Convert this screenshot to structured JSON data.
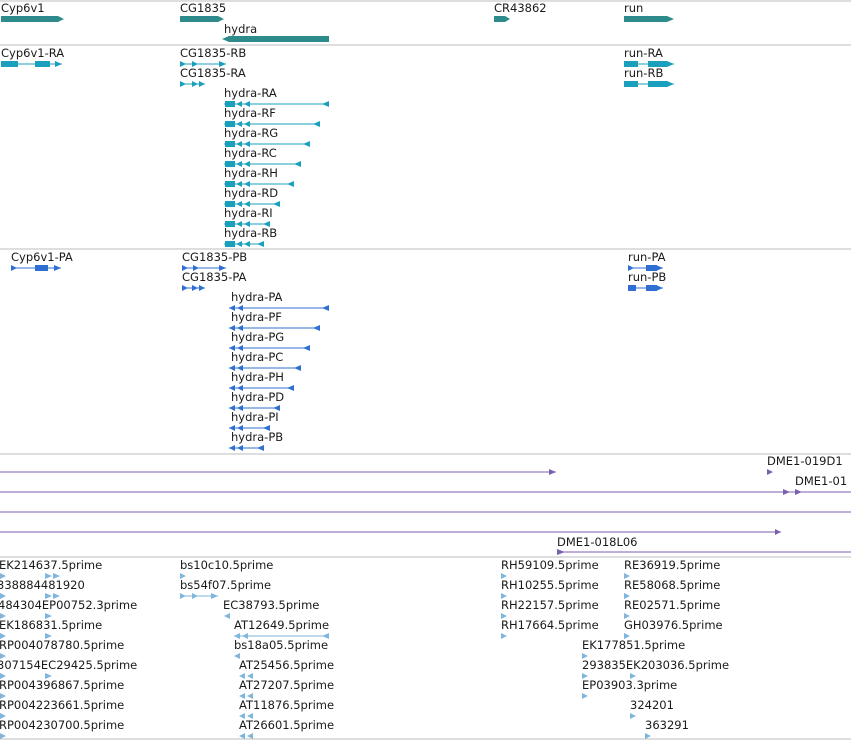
{
  "colors": {
    "gene": "#2e8b8b",
    "transcript": "#1aa0bd",
    "protein": "#2f6fd3",
    "clone": "#7b5fb0",
    "est": "#7fb6de",
    "divider": "#bcbcbc",
    "text": "#1a1a1a"
  },
  "tracks": {
    "genes": {
      "items": [
        {
          "id": "gene-cyp6v1",
          "label": "Cyp6v1"
        },
        {
          "id": "gene-cg1835",
          "label": "CG1835"
        },
        {
          "id": "gene-hydra",
          "label": "hydra"
        },
        {
          "id": "gene-cr43862",
          "label": "CR43862"
        },
        {
          "id": "gene-run",
          "label": "run"
        }
      ]
    },
    "transcripts": {
      "items": [
        {
          "id": "tx-cyp6v1-ra",
          "label": "Cyp6v1-RA"
        },
        {
          "id": "tx-cg1835-rb",
          "label": "CG1835-RB"
        },
        {
          "id": "tx-cg1835-ra",
          "label": "CG1835-RA"
        },
        {
          "id": "tx-hydra-ra",
          "label": "hydra-RA"
        },
        {
          "id": "tx-hydra-rf",
          "label": "hydra-RF"
        },
        {
          "id": "tx-hydra-rg",
          "label": "hydra-RG"
        },
        {
          "id": "tx-hydra-rc",
          "label": "hydra-RC"
        },
        {
          "id": "tx-hydra-rh",
          "label": "hydra-RH"
        },
        {
          "id": "tx-hydra-rd",
          "label": "hydra-RD"
        },
        {
          "id": "tx-hydra-ri",
          "label": "hydra-RI"
        },
        {
          "id": "tx-hydra-rb",
          "label": "hydra-RB"
        },
        {
          "id": "tx-run-ra",
          "label": "run-RA"
        },
        {
          "id": "tx-run-rb",
          "label": "run-RB"
        }
      ]
    },
    "proteins": {
      "items": [
        {
          "id": "pr-cyp6v1-pa",
          "label": "Cyp6v1-PA"
        },
        {
          "id": "pr-cg1835-pb",
          "label": "CG1835-PB"
        },
        {
          "id": "pr-cg1835-pa",
          "label": "CG1835-PA"
        },
        {
          "id": "pr-hydra-pa",
          "label": "hydra-PA"
        },
        {
          "id": "pr-hydra-pf",
          "label": "hydra-PF"
        },
        {
          "id": "pr-hydra-pg",
          "label": "hydra-PG"
        },
        {
          "id": "pr-hydra-pc",
          "label": "hydra-PC"
        },
        {
          "id": "pr-hydra-ph",
          "label": "hydra-PH"
        },
        {
          "id": "pr-hydra-pd",
          "label": "hydra-PD"
        },
        {
          "id": "pr-hydra-pi",
          "label": "hydra-PI"
        },
        {
          "id": "pr-hydra-pb",
          "label": "hydra-PB"
        },
        {
          "id": "pr-run-pa",
          "label": "run-PA"
        },
        {
          "id": "pr-run-pb",
          "label": "run-PB"
        }
      ]
    },
    "clones": {
      "items": [
        {
          "id": "cl-1",
          "label": ""
        },
        {
          "id": "cl-019d1",
          "label": "DME1-019D1"
        },
        {
          "id": "cl-2",
          "label": ""
        },
        {
          "id": "cl-01x",
          "label": "DME1-01"
        },
        {
          "id": "cl-3",
          "label": ""
        },
        {
          "id": "cl-4",
          "label": ""
        },
        {
          "id": "cl-018l06",
          "label": "DME1-018L06"
        }
      ]
    },
    "ests": {
      "items": [
        {
          "id": "est-ek214637",
          "label": "EK214637.5prime"
        },
        {
          "id": "est-bs10c10",
          "label": "bs10c10.5prime"
        },
        {
          "id": "est-rh59109",
          "label": "RH59109.5prime"
        },
        {
          "id": "est-re36919",
          "label": "RE36919.5prime"
        },
        {
          "id": "est-338884481920",
          "label": "338884481920"
        },
        {
          "id": "est-bs54f07",
          "label": "bs54f07.5prime"
        },
        {
          "id": "est-rh10255",
          "label": "RH10255.5prime"
        },
        {
          "id": "est-re58068",
          "label": "RE58068.5prime"
        },
        {
          "id": "est-484304ep00752",
          "label": "484304EP00752.3prime"
        },
        {
          "id": "est-ec38793",
          "label": "EC38793.5prime"
        },
        {
          "id": "est-rh22157",
          "label": "RH22157.5prime"
        },
        {
          "id": "est-re02571",
          "label": "RE02571.5prime"
        },
        {
          "id": "est-ek186831",
          "label": "EK186831.5prime"
        },
        {
          "id": "est-at12649",
          "label": "AT12649.5prime"
        },
        {
          "id": "est-rh17664",
          "label": "RH17664.5prime"
        },
        {
          "id": "est-gh03976",
          "label": "GH03976.5prime"
        },
        {
          "id": "est-rp004078780",
          "label": "RP004078780.5prime"
        },
        {
          "id": "est-bs18a05",
          "label": "bs18a05.5prime"
        },
        {
          "id": "est-ek177851",
          "label": "EK177851.5prime"
        },
        {
          "id": "est-307154ec29425",
          "label": "307154EC29425.5prime"
        },
        {
          "id": "est-at25456",
          "label": "AT25456.5prime"
        },
        {
          "id": "est-293835ek203036",
          "label": "293835EK203036.5prime"
        },
        {
          "id": "est-rp004396867",
          "label": "RP004396867.5prime"
        },
        {
          "id": "est-at27207",
          "label": "AT27207.5prime"
        },
        {
          "id": "est-ep03903",
          "label": "EP03903.3prime"
        },
        {
          "id": "est-rp004223661",
          "label": "RP004223661.5prime"
        },
        {
          "id": "est-at11876",
          "label": "AT11876.5prime"
        },
        {
          "id": "est-324201",
          "label": "324201"
        },
        {
          "id": "est-rp004230700",
          "label": "RP004230700.5prime"
        },
        {
          "id": "est-at26601",
          "label": "AT26601.5prime"
        },
        {
          "id": "est-363291",
          "label": "363291"
        }
      ]
    }
  }
}
